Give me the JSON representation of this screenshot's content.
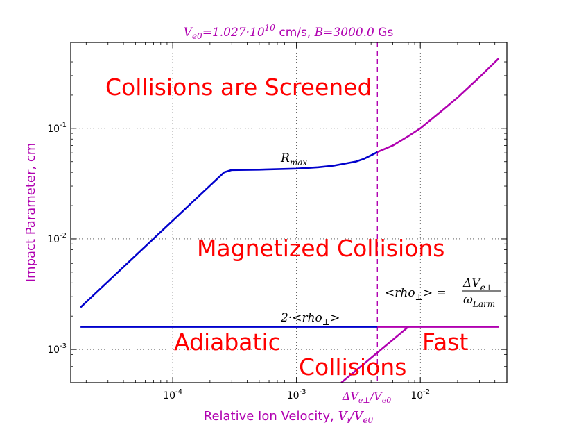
{
  "chart_data": {
    "type": "line",
    "title": "V_e0 = 1.027·10^10 cm/s, B = 3000.0 Gs",
    "title_parts": {
      "ve0_symbol": "V",
      "ve0_sub": "e0",
      "ve0_value": "=1.027·10",
      "ve0_exp": "10",
      "ve0_unit": " cm/s, ",
      "b_symbol": "B",
      "b_value": "=3000.0",
      "b_unit": " Gs"
    },
    "xlabel": "Relative Ion Velocity, V_i/V_e0",
    "xlabel_parts": {
      "text": "Relative Ion Velocity, ",
      "vi_symbol": "V",
      "vi_sub": "i",
      "slash": "/",
      "ve_symbol": "V",
      "ve_sub": "e0"
    },
    "ylabel": "Impact Parameter, cm",
    "x_scale": "log",
    "y_scale": "log",
    "xlim": [
      1.5e-05,
      0.05
    ],
    "ylim": [
      0.0005,
      0.6
    ],
    "grid": true,
    "x_ticks": [
      {
        "value": 0.0001,
        "base": "10",
        "exp": "-4"
      },
      {
        "value": 0.001,
        "base": "10",
        "exp": "-3"
      },
      {
        "value": 0.01,
        "base": "10",
        "exp": "-2"
      }
    ],
    "y_ticks": [
      {
        "value": 0.001,
        "base": "10",
        "exp": "-3"
      },
      {
        "value": 0.01,
        "base": "10",
        "exp": "-2"
      },
      {
        "value": 0.1,
        "base": "10",
        "exp": "-1"
      }
    ],
    "colors": {
      "rmax_left": "#0000cc",
      "rmax_right": "#b000b0",
      "rho_left": "#0000cc",
      "rho_right": "#b000b0",
      "fast": "#b000b0",
      "threshold": "#b000b0",
      "axis_label": "#b000b0",
      "region_text": "#ff0000"
    },
    "threshold_line": {
      "x": 0.0045,
      "label_parts": {
        "delta": "ΔV",
        "sub": "e⊥",
        "slash": "/",
        "v": "V",
        "vsub": "e0"
      }
    },
    "series": [
      {
        "id": "rmax_left",
        "label_parts": {
          "symbol": "R",
          "sub": "max"
        },
        "x": [
          1.8e-05,
          0.00026,
          0.0003,
          0.0005,
          0.001,
          0.0015,
          0.002,
          0.003,
          0.0035,
          0.004,
          0.0045
        ],
        "y": [
          0.0024,
          0.04,
          0.042,
          0.0423,
          0.0432,
          0.0445,
          0.046,
          0.05,
          0.053,
          0.057,
          0.061
        ]
      },
      {
        "id": "rmax_right",
        "x": [
          0.0045,
          0.006,
          0.008,
          0.01,
          0.015,
          0.02,
          0.03,
          0.043
        ],
        "y": [
          0.061,
          0.07,
          0.085,
          0.1,
          0.145,
          0.19,
          0.29,
          0.43
        ]
      },
      {
        "id": "rho_left",
        "label_parts": {
          "prefix": "2·<rho",
          "sub": "⊥",
          "suffix": ">"
        },
        "x": [
          1.8e-05,
          0.0045
        ],
        "y": [
          0.0016,
          0.0016
        ]
      },
      {
        "id": "rho_right",
        "x": [
          0.0045,
          0.043
        ],
        "y": [
          0.0016,
          0.0016
        ]
      },
      {
        "id": "fast",
        "x": [
          0.0023,
          0.008
        ],
        "y": [
          0.0005,
          0.0016
        ]
      }
    ],
    "annotations": {
      "rho_formula": {
        "left": "<rho",
        "sub": "⊥",
        "mid": "> =",
        "num": "ΔV",
        "num_sub": "e⊥",
        "den": "ω",
        "den_sub": "Larm"
      },
      "regions": [
        {
          "id": "screened",
          "text": "Collisions are Screened"
        },
        {
          "id": "magnetized",
          "text": "Magnetized Collisions"
        },
        {
          "id": "adiabatic",
          "text": "Adiabatic"
        },
        {
          "id": "fast",
          "text": "Fast"
        },
        {
          "id": "collisions",
          "text": "Collisions"
        }
      ]
    }
  }
}
